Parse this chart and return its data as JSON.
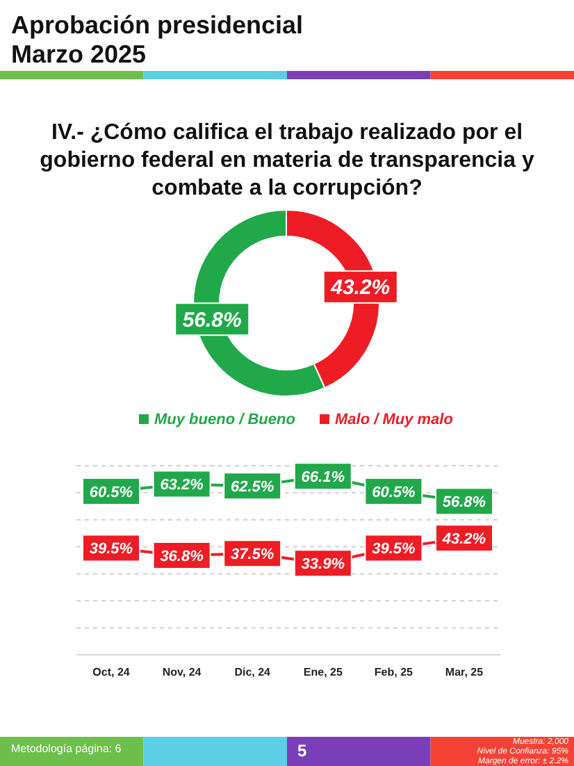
{
  "chart_data": [
    {
      "type": "donut",
      "title": "Aprobación presidencial\nMarzo 2025",
      "subtitle": "IV.- ¿Cómo califica el trabajo realizado por el gobierno federal en materia de transparencia y combate a la corrupción?",
      "categories": [
        "Muy bueno / Bueno",
        "Malo / Muy malo"
      ],
      "values": [
        56.8,
        43.2
      ],
      "colors": [
        "#21a84a",
        "#ee1c25"
      ],
      "value_labels": [
        "56.8%",
        "43.2%"
      ],
      "legend": "bottom"
    },
    {
      "type": "line",
      "categories": [
        "Oct, 24",
        "Nov, 24",
        "Dic, 24",
        "Ene, 25",
        "Feb, 25",
        "Mar, 25"
      ],
      "series": [
        {
          "color": "#21a84a",
          "values": [
            60.5,
            63.2,
            62.5,
            66.1,
            60.5,
            56.8
          ],
          "value_labels": [
            "60.5%",
            "63.2%",
            "62.5%",
            "66.1%",
            "60.5%",
            "56.8%"
          ]
        },
        {
          "color": "#ee1c25",
          "values": [
            39.5,
            36.8,
            37.5,
            33.9,
            39.5,
            43.2
          ],
          "value_labels": [
            "39.5%",
            "36.8%",
            "37.5%",
            "33.9%",
            "39.5%",
            "43.2%"
          ]
        }
      ],
      "ylim": [
        0,
        70
      ],
      "yticks": [
        {
          "value": 10,
          "label": null
        },
        {
          "value": 20,
          "label": null
        },
        {
          "value": 30,
          "label": null
        },
        {
          "value": 40,
          "label": null
        },
        {
          "value": 50,
          "label": null
        },
        {
          "value": 60,
          "label": null
        },
        {
          "value": 70,
          "label": null
        }
      ],
      "tick_labels": "x",
      "grid": "y",
      "marker": "square",
      "line_style": "solid",
      "annotations": [
        "Metodología página: 6",
        "5",
        "Muestra: 2,000",
        "Nivel de Confianza: 95%",
        "Margen de error: ± 2.2%"
      ]
    }
  ]
}
